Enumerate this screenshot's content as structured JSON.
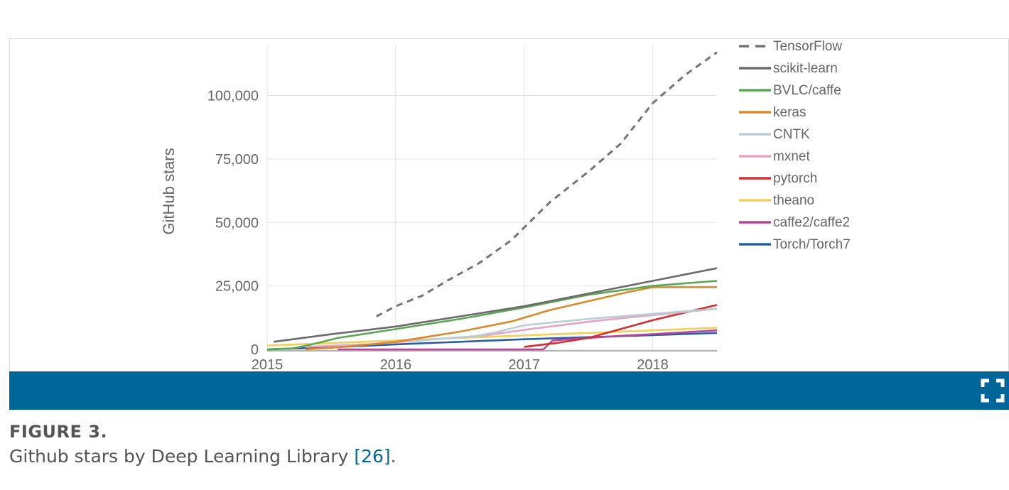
{
  "figure": {
    "label": "FIGURE 3.",
    "caption_text": "Github stars by Deep Learning Library ",
    "ref_text": "[26]",
    "caption_end": "."
  },
  "toolbar": {
    "expand_icon": "fullscreen-icon",
    "color": "#006699"
  },
  "chart_data": {
    "type": "line",
    "title": "",
    "xlabel": "",
    "ylabel": "GitHub stars",
    "xlim": [
      2015.0,
      2018.5
    ],
    "ylim": [
      0,
      120000
    ],
    "x_ticks": [
      "2015",
      "2016",
      "2017",
      "2018"
    ],
    "y_ticks": [
      "0",
      "25,000",
      "50,000",
      "75,000",
      "100,000"
    ],
    "y_tick_values": [
      0,
      25000,
      50000,
      75000,
      100000
    ],
    "x_tick_values": [
      2015,
      2016,
      2017,
      2018
    ],
    "grid": true,
    "legend_position": "right",
    "series": [
      {
        "name": "TensorFlow",
        "color": "#757575",
        "dashed": true,
        "x": [
          2015.85,
          2016.0,
          2016.2,
          2016.4,
          2016.65,
          2016.9,
          2017.0,
          2017.2,
          2017.5,
          2017.75,
          2018.0,
          2018.25,
          2018.5
        ],
        "y": [
          13000,
          17000,
          21000,
          27000,
          34000,
          43000,
          48000,
          58000,
          70000,
          81000,
          97000,
          108000,
          117000
        ]
      },
      {
        "name": "scikit-learn",
        "color": "#6b6b6b",
        "dashed": false,
        "x": [
          2015.05,
          2015.5,
          2016.0,
          2016.5,
          2017.0,
          2017.5,
          2018.0,
          2018.3,
          2018.5
        ],
        "y": [
          3000,
          6000,
          9000,
          13000,
          17000,
          22000,
          27000,
          30000,
          32000
        ]
      },
      {
        "name": "BVLC/caffe",
        "color": "#5aa651",
        "dashed": false,
        "x": [
          2015.0,
          2015.2,
          2015.35,
          2015.55,
          2016.0,
          2016.5,
          2017.0,
          2017.5,
          2018.0,
          2018.5
        ],
        "y": [
          0,
          400,
          2000,
          4500,
          8000,
          12000,
          16500,
          21500,
          25000,
          27000
        ]
      },
      {
        "name": "keras",
        "color": "#d98a2c",
        "dashed": false,
        "x": [
          2015.3,
          2015.6,
          2016.0,
          2016.5,
          2016.9,
          2017.2,
          2017.5,
          2017.8,
          2018.0,
          2018.5
        ],
        "y": [
          0,
          1000,
          3000,
          7000,
          11000,
          15500,
          19000,
          22500,
          24500,
          24500
        ]
      },
      {
        "name": "CNTK",
        "color": "#b9cfd6",
        "dashed": false,
        "x": [
          2016.1,
          2016.3,
          2016.6,
          2016.8,
          2017.0,
          2017.5,
          2018.0,
          2018.5
        ],
        "y": [
          3000,
          4000,
          5000,
          7000,
          9500,
          12000,
          14000,
          16000
        ]
      },
      {
        "name": "mxnet",
        "color": "#e6a3c3",
        "dashed": false,
        "x": [
          2015.3,
          2015.8,
          2016.3,
          2016.7,
          2016.9,
          2017.2,
          2017.6,
          2018.0,
          2018.5
        ],
        "y": [
          1000,
          2000,
          4000,
          5500,
          7000,
          9000,
          11500,
          13500,
          16000
        ]
      },
      {
        "name": "pytorch",
        "color": "#d62e2e",
        "dashed": false,
        "x": [
          2017.0,
          2017.25,
          2017.5,
          2017.75,
          2018.0,
          2018.25,
          2018.5
        ],
        "y": [
          1000,
          2500,
          4500,
          8000,
          11500,
          14500,
          17500
        ]
      },
      {
        "name": "theano",
        "color": "#f2ce5a",
        "dashed": false,
        "x": [
          2015.0,
          2015.5,
          2016.0,
          2016.5,
          2017.0,
          2017.5,
          2018.0,
          2018.5
        ],
        "y": [
          1500,
          2500,
          3500,
          4500,
          5500,
          6500,
          7500,
          8500
        ]
      },
      {
        "name": "caffe2/caffe2",
        "color": "#b5479a",
        "dashed": false,
        "x": [
          2015.55,
          2016.0,
          2016.5,
          2017.0,
          2017.15,
          2017.22,
          2017.5,
          2017.8,
          2018.0,
          2018.5
        ],
        "y": [
          0,
          0,
          0,
          0,
          0,
          3500,
          4500,
          5500,
          6000,
          7500
        ]
      },
      {
        "name": "Torch/Torch7",
        "color": "#2a5d9f",
        "dashed": false,
        "x": [
          2015.0,
          2015.5,
          2016.0,
          2016.5,
          2017.0,
          2017.5,
          2018.0,
          2018.5
        ],
        "y": [
          0,
          800,
          2000,
          3000,
          4000,
          4800,
          5600,
          6500
        ]
      }
    ]
  }
}
